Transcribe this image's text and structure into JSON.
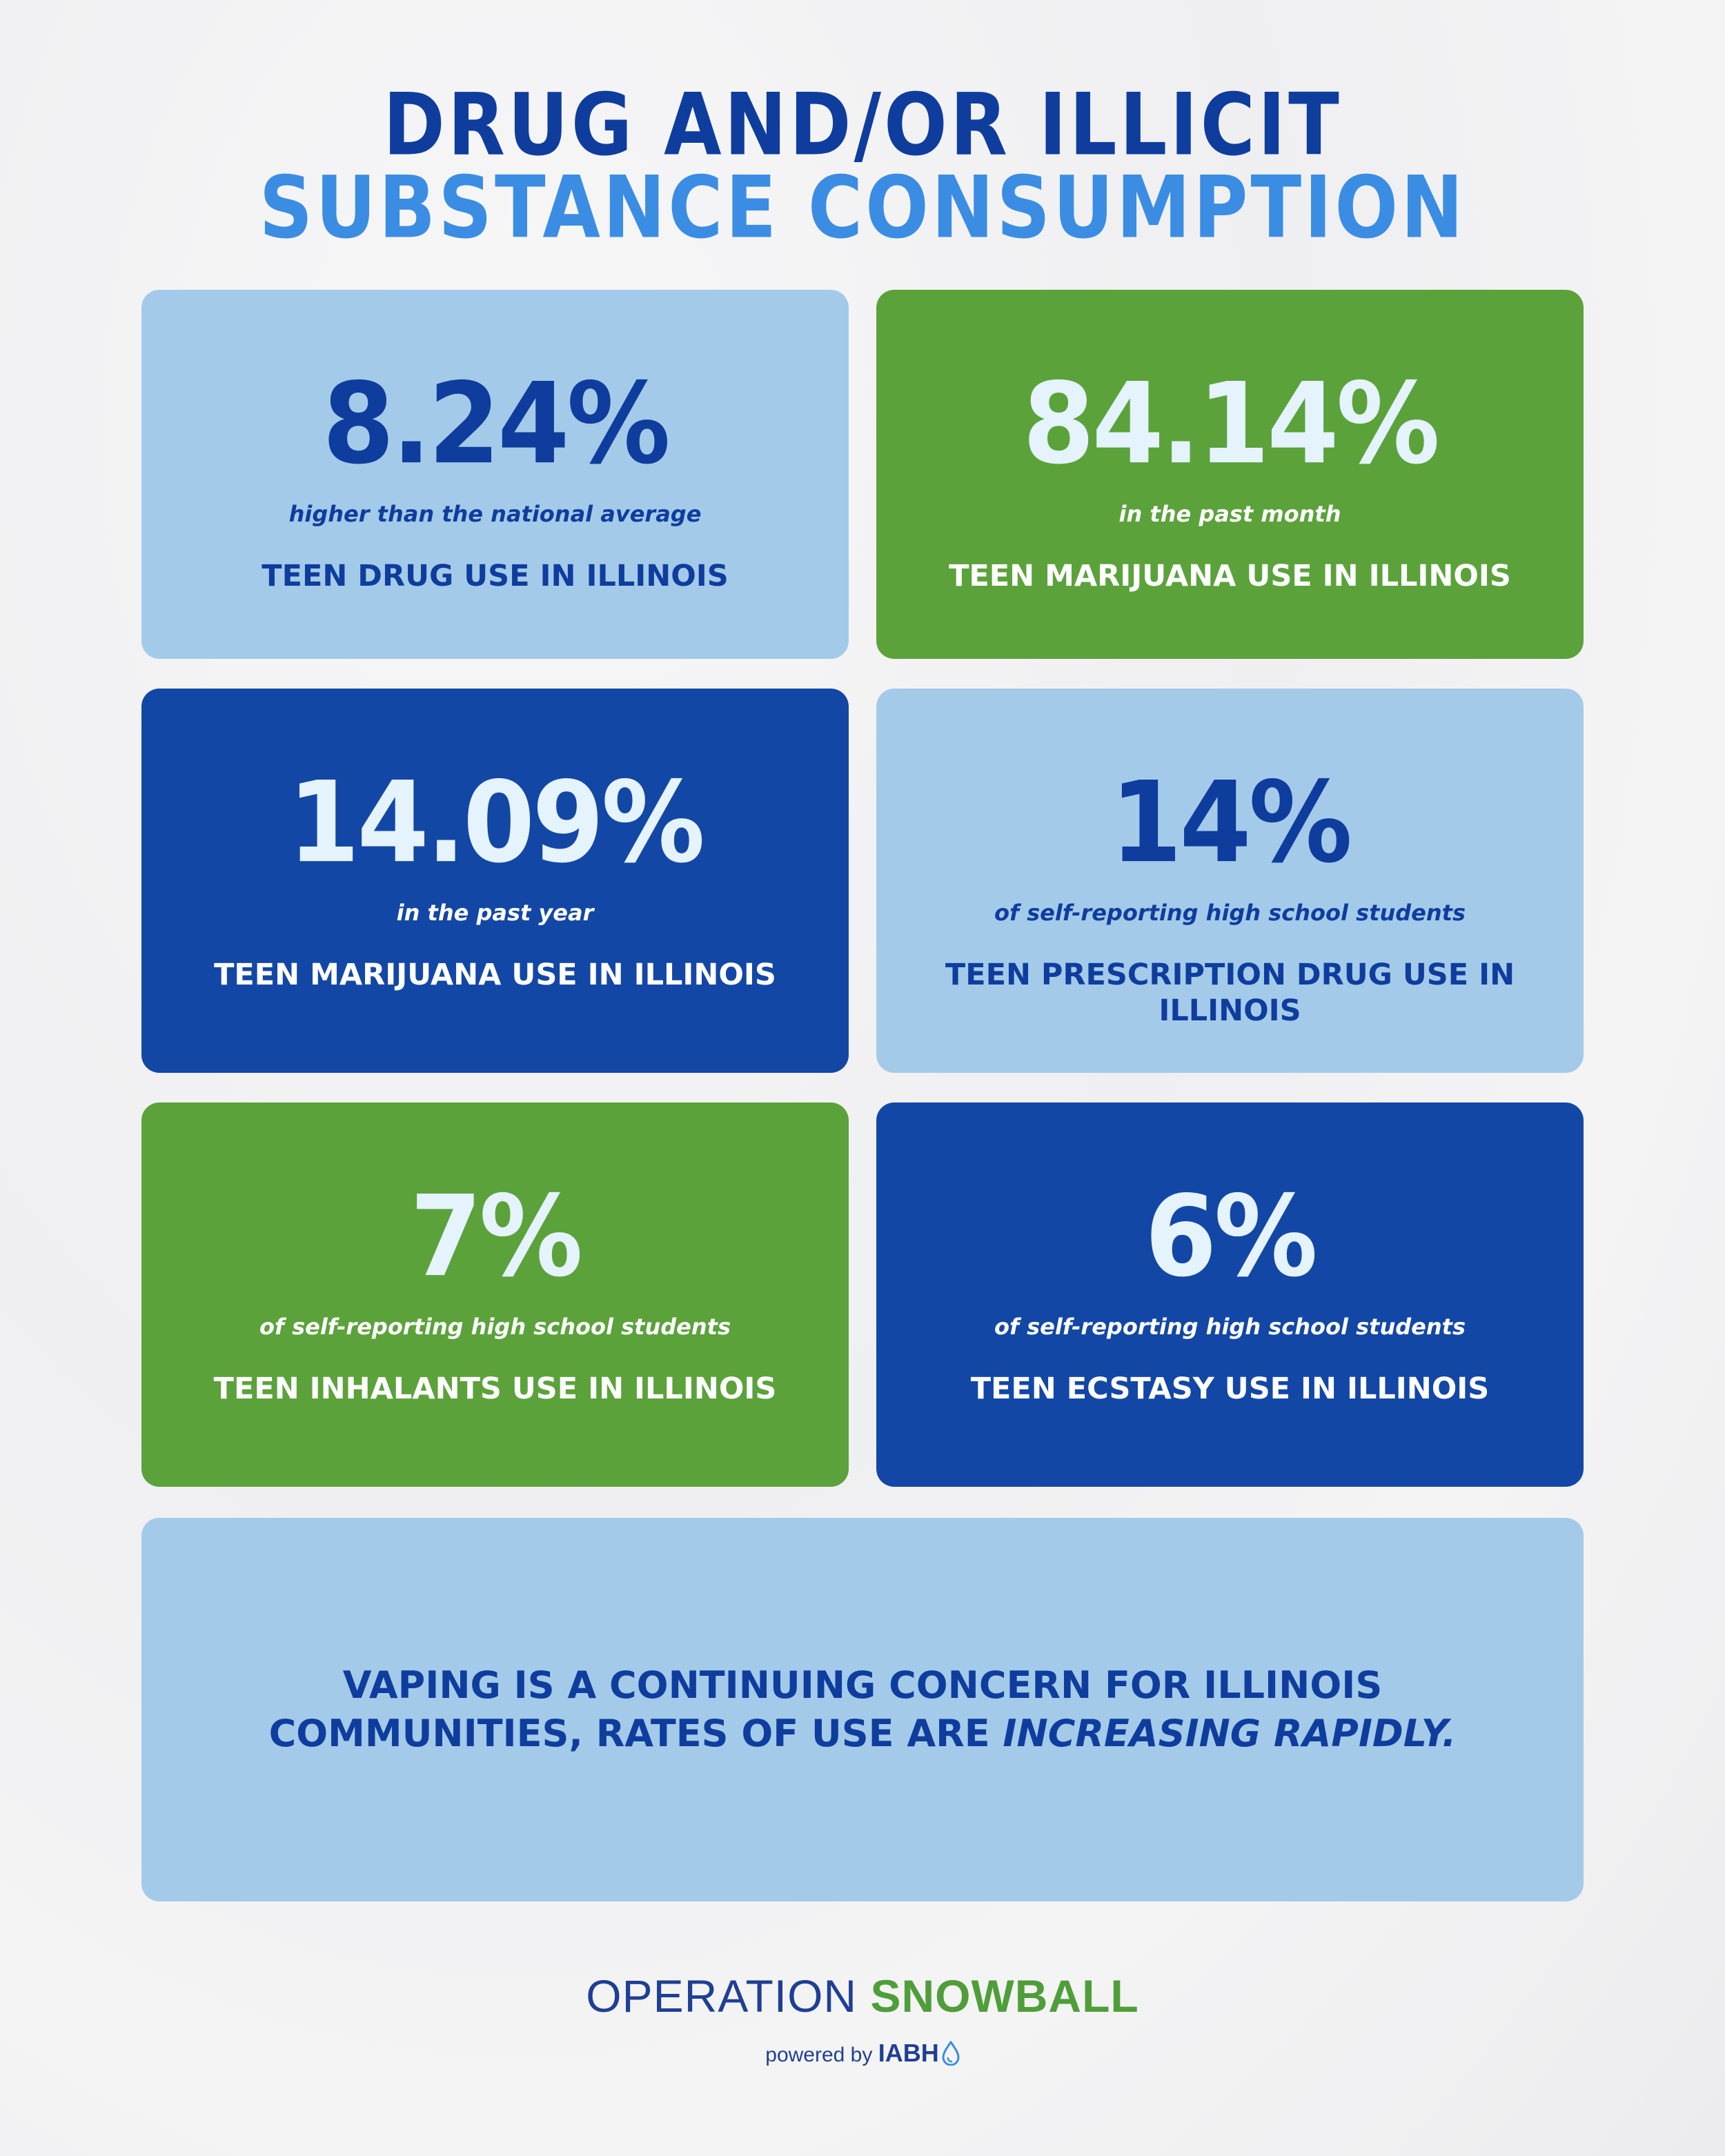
{
  "header": {
    "title_line1": "DRUG AND/OR ILLICIT",
    "title_line2": "SUBSTANCE CONSUMPTION"
  },
  "cards": [
    {
      "stat": "8.24%",
      "sub": "higher than the national average",
      "label": "TEEN DRUG USE IN ILLINOIS"
    },
    {
      "stat": "84.14%",
      "sub": "in the past month",
      "label": "TEEN MARIJUANA USE IN ILLINOIS"
    },
    {
      "stat": "14.09%",
      "sub": "in the past year",
      "label": "TEEN MARIJUANA USE IN ILLINOIS"
    },
    {
      "stat": "14%",
      "sub": "of self-reporting high school students",
      "label": "TEEN PRESCRIPTION DRUG USE IN ILLINOIS"
    },
    {
      "stat": "7%",
      "sub": "of self-reporting high school students",
      "label": "TEEN INHALANTS USE IN ILLINOIS"
    },
    {
      "stat": "6%",
      "sub": "of self-reporting high school students",
      "label": "TEEN ECSTASY USE IN ILLINOIS"
    }
  ],
  "vaping": {
    "text": "VAPING IS A CONTINUING CONCERN FOR ILLINOIS COMMUNITIES, RATES OF USE ARE ",
    "emphasis": "INCREASING RAPIDLY."
  },
  "footer": {
    "brand_part1": "OPERATION ",
    "brand_part2": "SNOWBALL",
    "powered_by": "powered by",
    "org": "IABH"
  },
  "colors": {
    "navy": "#0f3d9e",
    "bright_blue": "#3a8de3",
    "light_blue": "#a3cbe9",
    "green": "#5ba23b",
    "dark_blue": "#1347a6"
  },
  "icons": {
    "logo_mark": "water-drop-icon"
  }
}
